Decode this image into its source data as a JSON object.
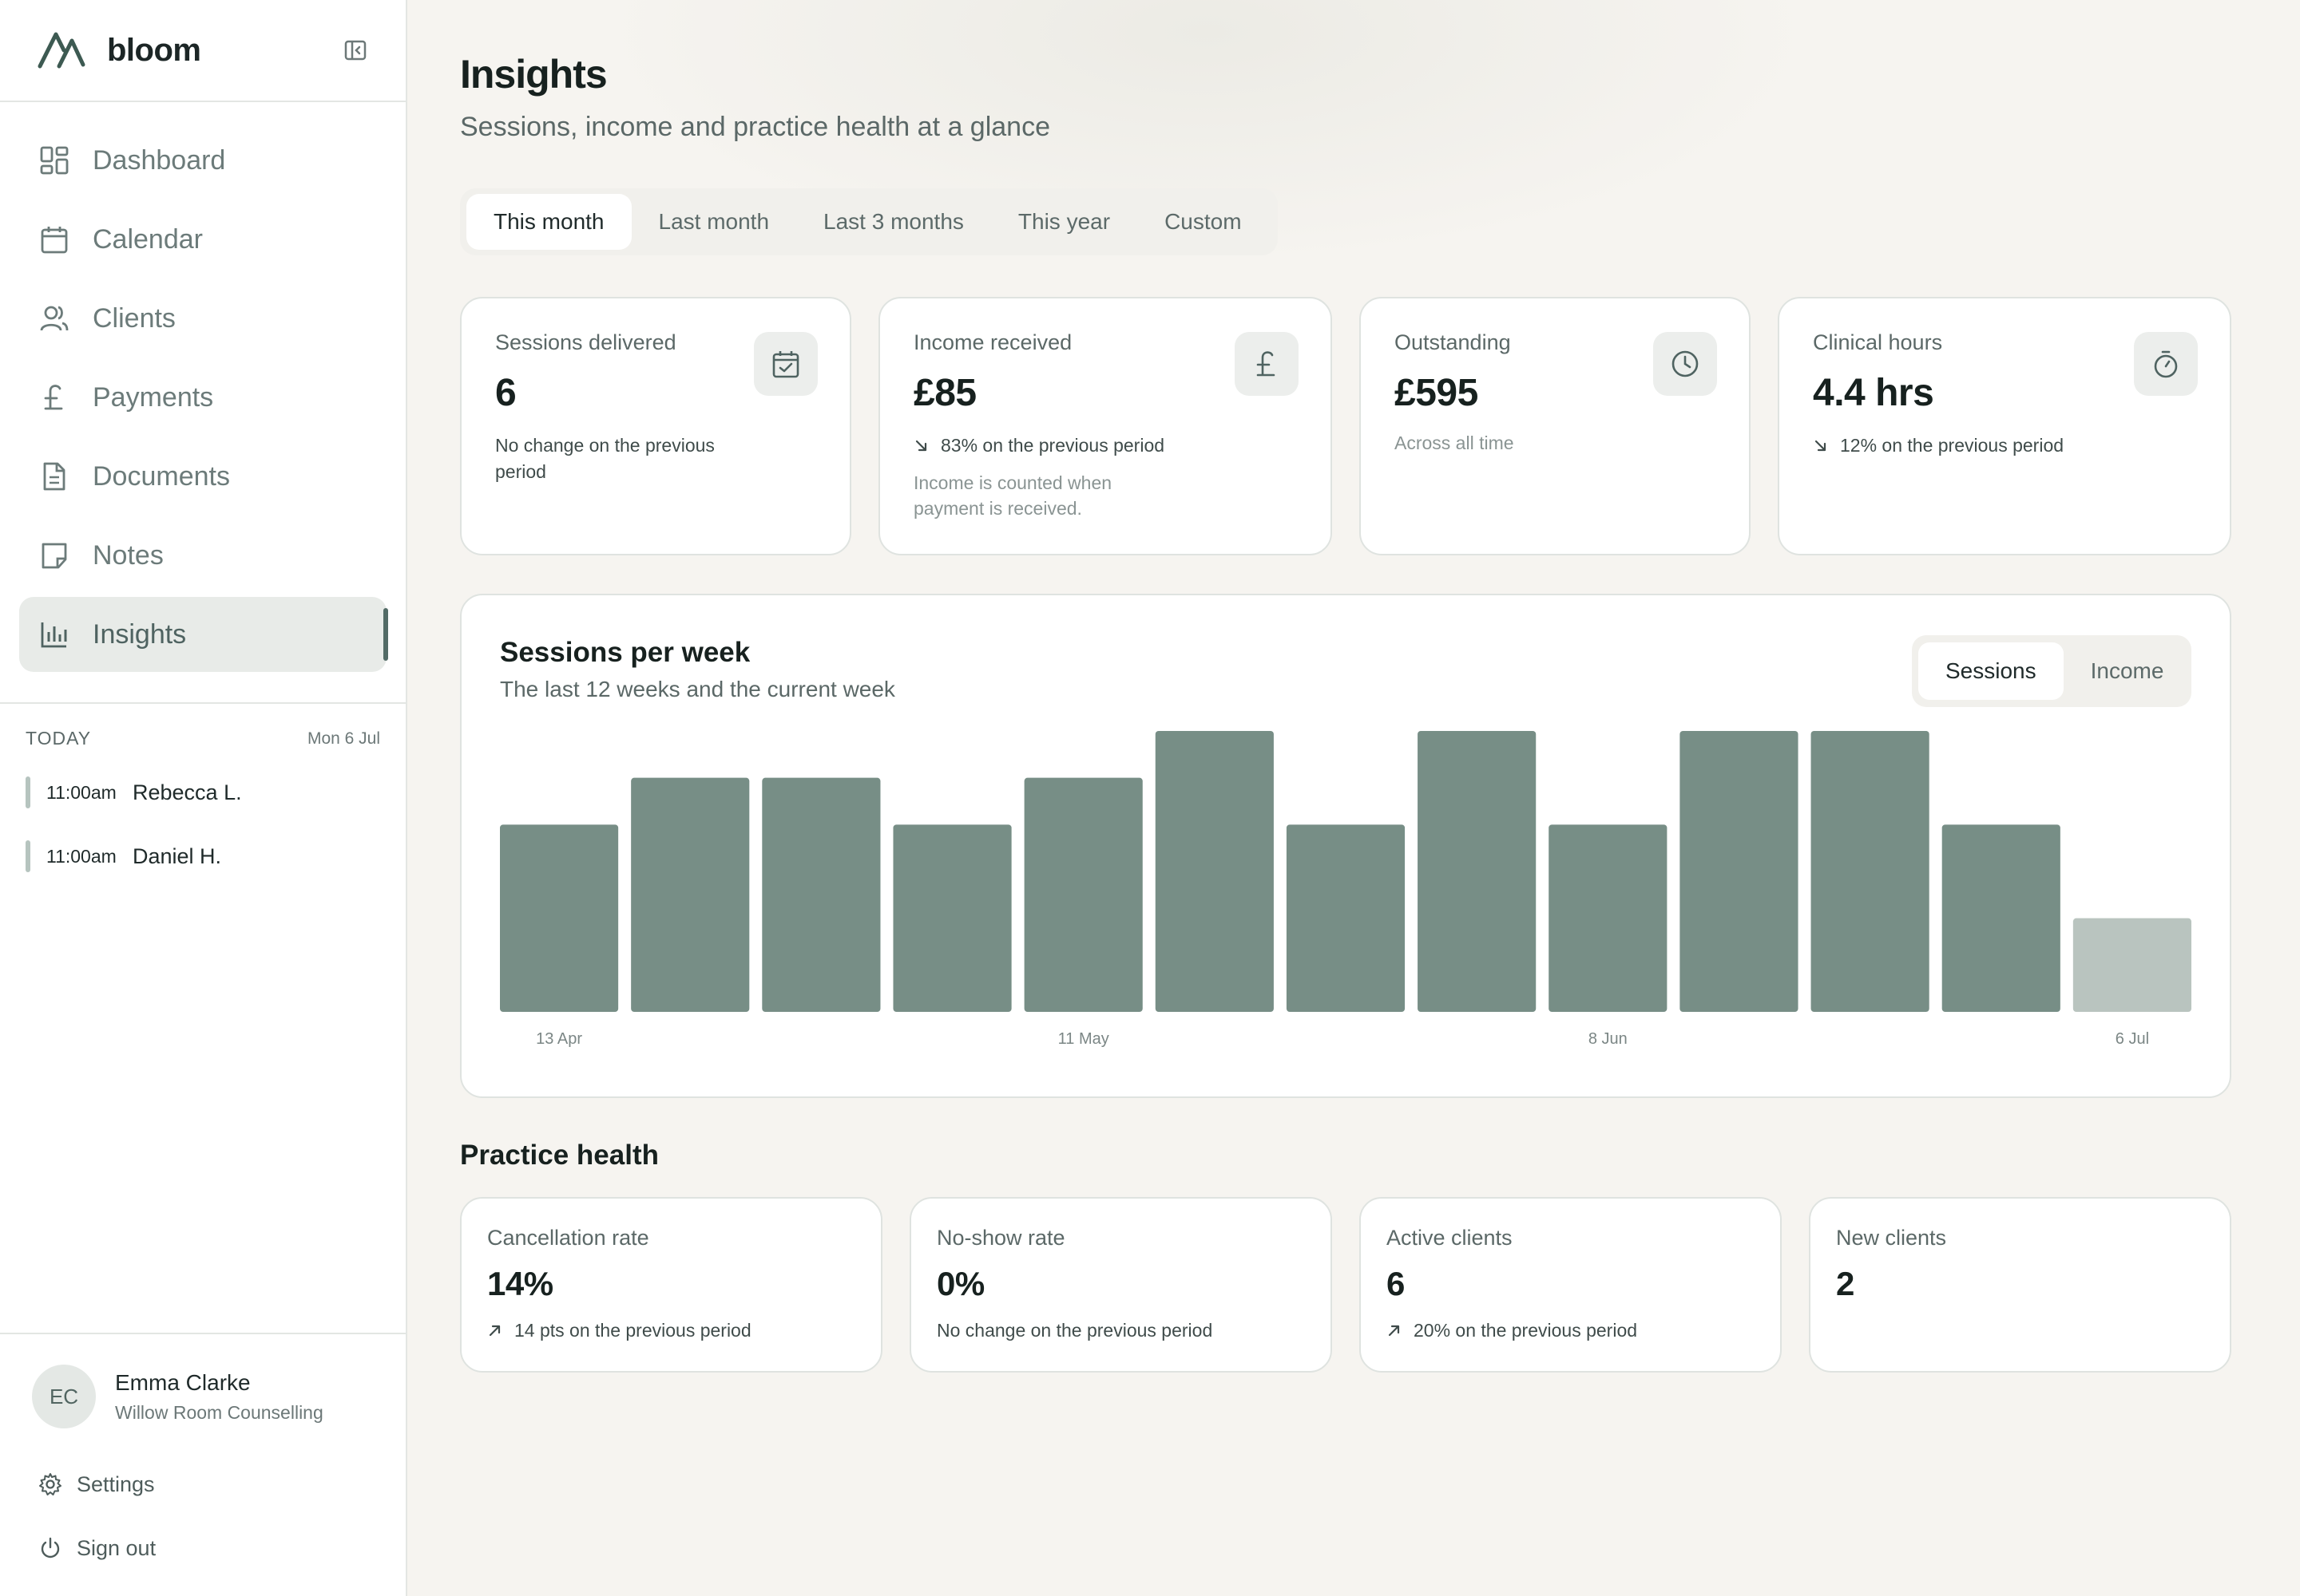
{
  "app": {
    "name": "bloom"
  },
  "nav": [
    {
      "key": "dashboard",
      "label": "Dashboard",
      "icon": "dashboard-icon"
    },
    {
      "key": "calendar",
      "label": "Calendar",
      "icon": "calendar-icon"
    },
    {
      "key": "clients",
      "label": "Clients",
      "icon": "users-icon"
    },
    {
      "key": "payments",
      "label": "Payments",
      "icon": "pound-icon"
    },
    {
      "key": "documents",
      "label": "Documents",
      "icon": "document-icon"
    },
    {
      "key": "notes",
      "label": "Notes",
      "icon": "note-icon"
    },
    {
      "key": "insights",
      "label": "Insights",
      "icon": "bar-chart-icon",
      "active": true
    }
  ],
  "today": {
    "label": "TODAY",
    "date": "Mon 6 Jul",
    "appointments": [
      {
        "time": "11:00am",
        "name": "Rebecca L."
      },
      {
        "time": "11:00am",
        "name": "Daniel H."
      }
    ]
  },
  "user": {
    "initials": "EC",
    "name": "Emma Clarke",
    "org": "Willow Room Counselling"
  },
  "bottom_links": {
    "settings": "Settings",
    "signout": "Sign out"
  },
  "page": {
    "title": "Insights",
    "subtitle": "Sessions, income and practice health at a glance"
  },
  "period_tabs": [
    {
      "label": "This month",
      "active": true
    },
    {
      "label": "Last month"
    },
    {
      "label": "Last 3 months"
    },
    {
      "label": "This year"
    },
    {
      "label": "Custom"
    }
  ],
  "kpis": {
    "sessions": {
      "label": "Sessions delivered",
      "value": "6",
      "note": "No change on the previous period"
    },
    "income": {
      "label": "Income received",
      "value": "£85",
      "note": "83% on the previous period",
      "direction": "down",
      "sub": "Income is counted when payment is received."
    },
    "outstanding": {
      "label": "Outstanding",
      "value": "£595",
      "muted": "Across all time"
    },
    "hours": {
      "label": "Clinical hours",
      "value": "4.4 hrs",
      "note": "12% on the previous period",
      "direction": "down"
    }
  },
  "chart_toggle": [
    {
      "label": "Sessions",
      "active": true
    },
    {
      "label": "Income"
    }
  ],
  "chart_data": {
    "type": "bar",
    "title": "Sessions per week",
    "subtitle": "The last 12 weeks and the current week",
    "x_tick_labels": [
      "13 Apr",
      "11 May",
      "8 Jun",
      "6 Jul"
    ],
    "tick_indices": [
      0,
      4,
      8,
      12
    ],
    "values": [
      4,
      5,
      5,
      4,
      5,
      6,
      4,
      6,
      4,
      6,
      6,
      4,
      2
    ],
    "current_week_index": 12,
    "ylim": [
      0,
      6
    ],
    "grid": false,
    "colors": {
      "bar": "#778e86",
      "current": "#b9c4bf"
    }
  },
  "practice_health": {
    "title": "Practice health",
    "cards": [
      {
        "label": "Cancellation rate",
        "value": "14%",
        "note": "14 pts on the previous period",
        "direction": "up"
      },
      {
        "label": "No-show rate",
        "value": "0%",
        "note": "No change on the previous period"
      },
      {
        "label": "Active clients",
        "value": "6",
        "note": "20% on the previous period",
        "direction": "up"
      },
      {
        "label": "New clients",
        "value": "2"
      }
    ]
  },
  "colors": {
    "accent": "#526b66",
    "bar": "#778e86",
    "bar_current": "#b9c4bf",
    "background": "#f6f4f0"
  }
}
